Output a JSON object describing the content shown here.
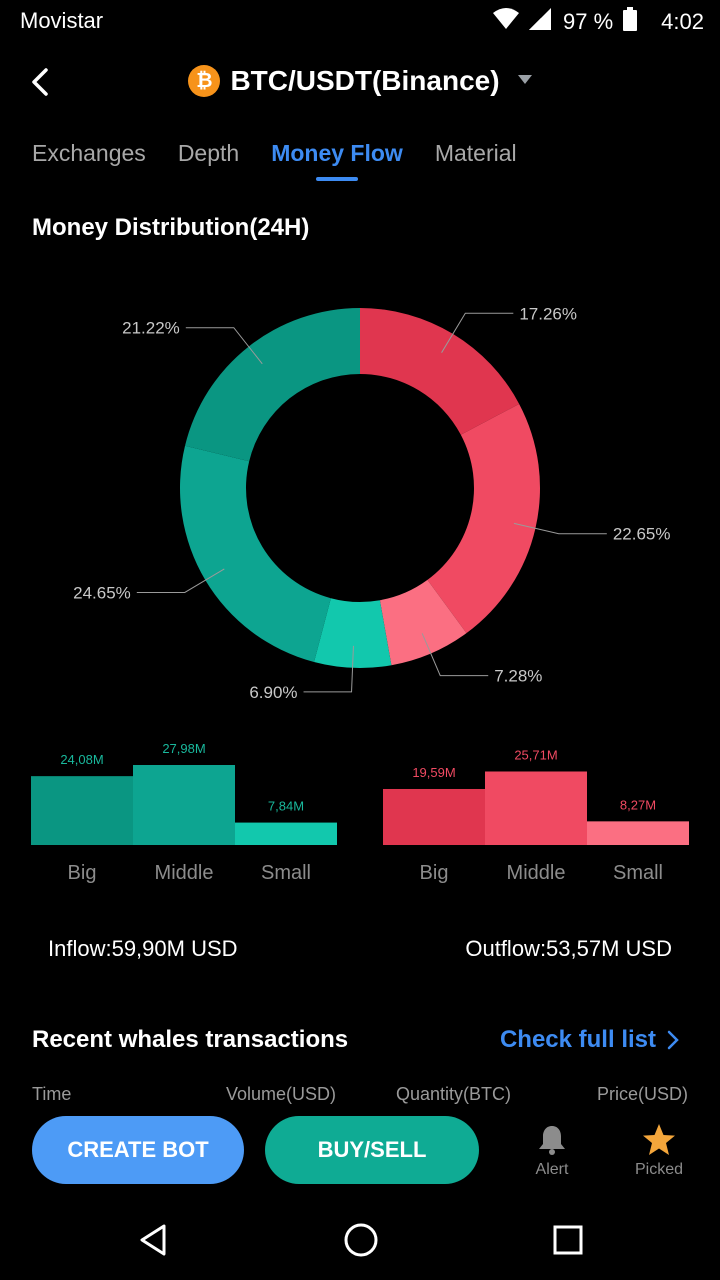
{
  "status_bar": {
    "carrier": "Movistar",
    "battery": "97 %",
    "time": "4:02"
  },
  "header": {
    "title": "BTC/USDT(Binance)",
    "coin_icon": "bitcoin-icon"
  },
  "tabs": [
    {
      "label": "Exchanges",
      "active": false
    },
    {
      "label": "Depth",
      "active": false
    },
    {
      "label": "Money Flow",
      "active": true
    },
    {
      "label": "Material",
      "active": false
    }
  ],
  "distribution": {
    "title": "Money Distribution(24H)",
    "chart_data": {
      "type": "pie",
      "style": "donut",
      "slices": [
        {
          "label": "17.26%",
          "value": 17.26,
          "color": "#e0364f",
          "side": "outflow"
        },
        {
          "label": "22.65%",
          "value": 22.65,
          "color": "#f04a62",
          "side": "outflow"
        },
        {
          "label": "7.28%",
          "value": 7.28,
          "color": "#fb6f82",
          "side": "outflow"
        },
        {
          "label": "6.90%",
          "value": 6.9,
          "color": "#12c8ad",
          "side": "inflow"
        },
        {
          "label": "24.65%",
          "value": 24.65,
          "color": "#0da591",
          "side": "inflow"
        },
        {
          "label": "21.22%",
          "value": 21.22,
          "color": "#0a9682",
          "side": "inflow"
        }
      ]
    }
  },
  "size_bars": {
    "chart_data": [
      {
        "type": "bar",
        "side": "inflow",
        "categories": [
          "Big",
          "Middle",
          "Small"
        ],
        "values": [
          24.08,
          27.98,
          7.84
        ],
        "value_labels": [
          "24,08M",
          "27,98M",
          "7,84M"
        ],
        "colors": [
          "#0a9682",
          "#0da591",
          "#12c8ad"
        ],
        "label_color": "#19b89c"
      },
      {
        "type": "bar",
        "side": "outflow",
        "categories": [
          "Big",
          "Middle",
          "Small"
        ],
        "values": [
          19.59,
          25.71,
          8.27
        ],
        "value_labels": [
          "19,59M",
          "25,71M",
          "8,27M"
        ],
        "colors": [
          "#e0364f",
          "#f04a62",
          "#fb6f82"
        ],
        "label_color": "#f04a62"
      }
    ]
  },
  "inflow_text": "Inflow:59,90M USD",
  "outflow_text": "Outflow:53,57M USD",
  "whales": {
    "title": "Recent whales transactions",
    "link": "Check full list",
    "columns": [
      "Time",
      "Volume(USD)",
      "Quantity(BTC)",
      "Price(USD)"
    ]
  },
  "actions": {
    "create_bot": "CREATE BOT",
    "buy_sell": "BUY/SELL",
    "alert": "Alert",
    "picked": "Picked"
  }
}
